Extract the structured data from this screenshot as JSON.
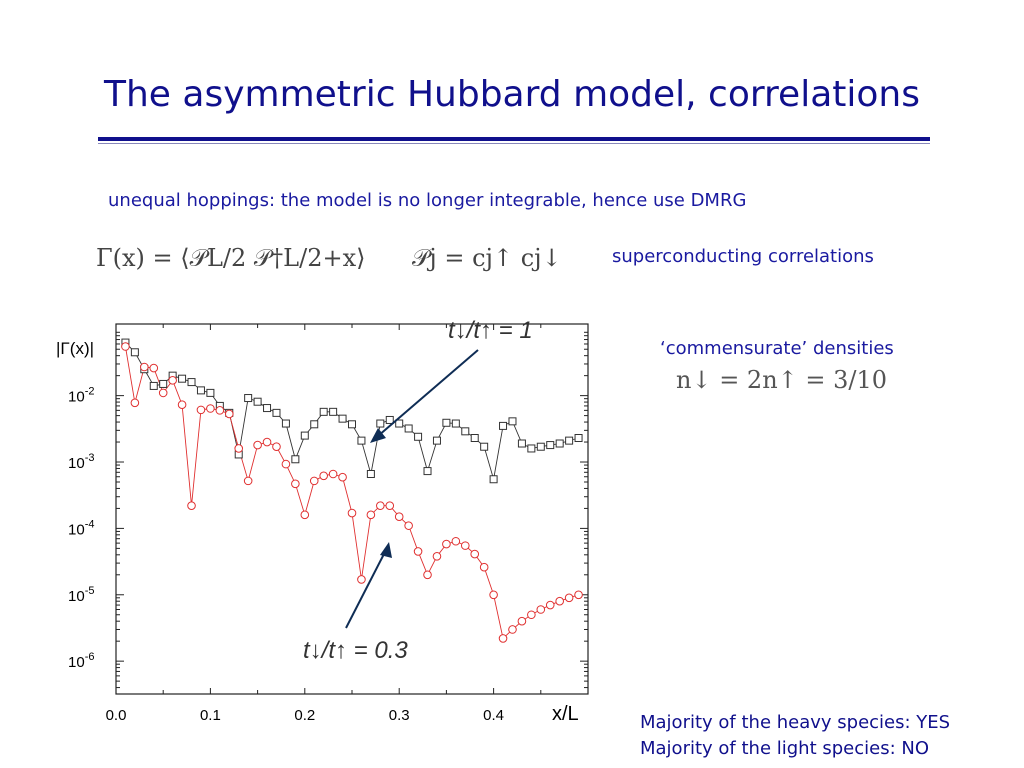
{
  "slide": {
    "title": "The asymmetric Hubbard model, correlations",
    "subtitle": "unequal hoppings: the model is no longer integrable, hence use DMRG",
    "formula_gamma": "Γ(x) = ⟨𝒫L/2 𝒫†L/2+x⟩",
    "formula_p": "𝒫j = cj↑ cj↓",
    "superconducting_label": "superconducting correlations",
    "commensurate_label": "‘commensurate’ densities",
    "density_formula": "n↓ = 2n↑ = 3/10",
    "majority_heavy": "Majority of the heavy species: YES",
    "majority_light": "Majority of the light species:   NO",
    "colors": {
      "title": "#10108c",
      "text": "#1a1aa0",
      "red_series": "#e03030",
      "black_series": "#333333",
      "arrow": "#0f2d55"
    }
  },
  "chart_data": {
    "type": "scatter",
    "y_scale": "log",
    "ylabel": "|Γ(x)|",
    "xlabel": "x/L",
    "xlim": [
      0.0,
      0.5
    ],
    "ylim": [
      3.2e-07,
      0.12
    ],
    "x_ticks": [
      "0.0",
      "0.1",
      "0.2",
      "0.3",
      "0.4"
    ],
    "y_ticks": [
      {
        "base": "10",
        "exp": "-2"
      },
      {
        "base": "10",
        "exp": "-3"
      },
      {
        "base": "10",
        "exp": "-4"
      },
      {
        "base": "10",
        "exp": "-5"
      },
      {
        "base": "10",
        "exp": "-6"
      }
    ],
    "annotations": [
      {
        "text": "t↓/t↑ = 1",
        "target_series": "t↓/t↑ = 1"
      },
      {
        "text": "t↓/t↑ = 0.3",
        "target_series": "t↓/t↑ = 0.3"
      }
    ],
    "x": [
      0.01,
      0.02,
      0.03,
      0.04,
      0.05,
      0.06,
      0.07,
      0.08,
      0.09,
      0.1,
      0.11,
      0.12,
      0.13,
      0.14,
      0.15,
      0.16,
      0.17,
      0.18,
      0.19,
      0.2,
      0.21,
      0.22,
      0.23,
      0.24,
      0.25,
      0.26,
      0.27,
      0.28,
      0.29,
      0.3,
      0.31,
      0.32,
      0.33,
      0.34,
      0.35,
      0.36,
      0.37,
      0.38,
      0.39,
      0.4,
      0.41,
      0.42,
      0.43,
      0.44,
      0.45,
      0.46,
      0.47,
      0.48,
      0.49
    ],
    "series": [
      {
        "name": "t↓/t↑ = 1",
        "marker": "square",
        "color": "#333333",
        "values": [
          0.063,
          0.045,
          0.025,
          0.014,
          0.015,
          0.02,
          0.018,
          0.016,
          0.012,
          0.011,
          0.007,
          0.0055,
          0.0013,
          0.0092,
          0.0081,
          0.0065,
          0.0055,
          0.0038,
          0.0011,
          0.0025,
          0.0037,
          0.0057,
          0.0057,
          0.0045,
          0.0037,
          0.0021,
          0.00066,
          0.0038,
          0.0043,
          0.0038,
          0.0032,
          0.0024,
          0.00073,
          0.0021,
          0.0039,
          0.0038,
          0.0029,
          0.0023,
          0.0017,
          0.00055,
          0.0035,
          0.0041,
          0.0019,
          0.0016,
          0.0017,
          0.0018,
          0.0019,
          0.0021,
          0.0023
        ]
      },
      {
        "name": "t↓/t↑ = 0.3",
        "marker": "circle",
        "color": "#e03030",
        "values": [
          0.055,
          0.0078,
          0.027,
          0.026,
          0.011,
          0.017,
          0.0073,
          0.00022,
          0.0061,
          0.0064,
          0.006,
          0.0053,
          0.0016,
          0.00052,
          0.0018,
          0.002,
          0.0017,
          0.00093,
          0.00047,
          0.00016,
          0.00052,
          0.00062,
          0.00066,
          0.00059,
          0.00017,
          1.7e-05,
          0.00016,
          0.00022,
          0.00022,
          0.00015,
          0.00011,
          4.5e-05,
          2e-05,
          3.8e-05,
          5.8e-05,
          6.4e-05,
          5.5e-05,
          4.1e-05,
          2.6e-05,
          1e-05,
          2.2e-06,
          3e-06,
          4e-06,
          5e-06,
          6e-06,
          7e-06,
          8e-06,
          9e-06,
          1e-05
        ]
      }
    ]
  }
}
